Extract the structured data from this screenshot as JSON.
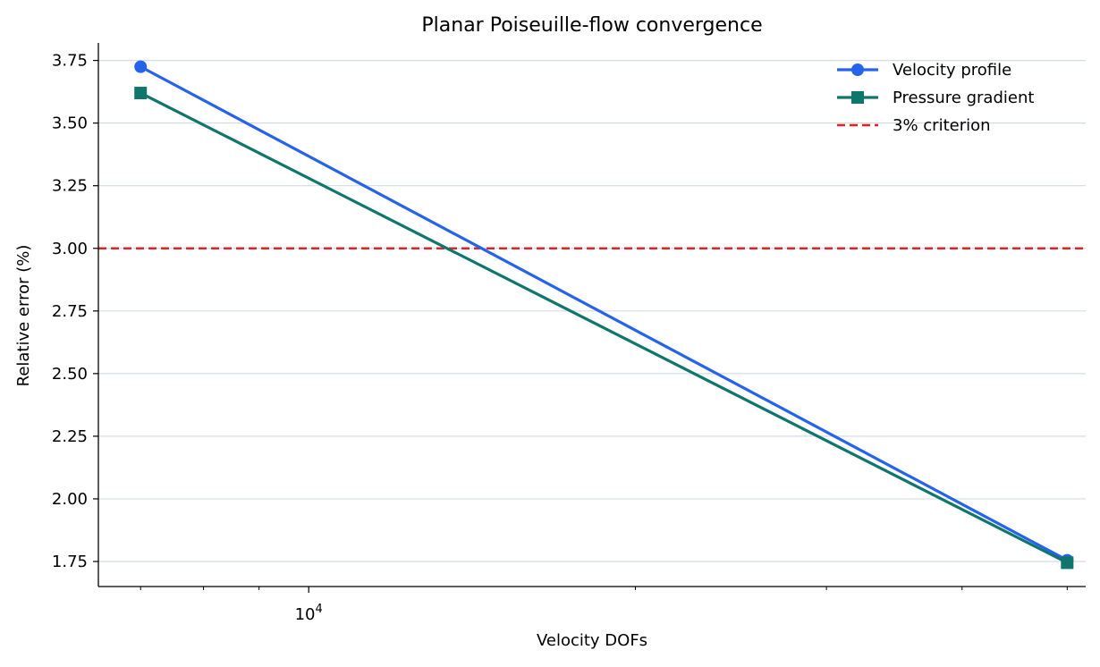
{
  "chart_data": {
    "type": "line",
    "title": "Planar Poiseuille-flow convergence",
    "xlabel": "Velocity DOFs",
    "ylabel": "Relative error (%)",
    "xscale": "log",
    "xlim": [
      6400,
      52000
    ],
    "ylim": [
      1.65,
      3.82
    ],
    "y_ticks": [
      1.75,
      2.0,
      2.25,
      2.5,
      2.75,
      3.0,
      3.25,
      3.5,
      3.75
    ],
    "y_tick_labels": [
      "1.75",
      "2.00",
      "2.25",
      "2.50",
      "2.75",
      "3.00",
      "3.25",
      "3.50",
      "3.75"
    ],
    "x_major_ticks": [
      10000
    ],
    "x_major_tick_label": {
      "base": "10",
      "exponent": "4"
    },
    "x_minor_ticks": [
      7000,
      8000,
      9000,
      20000,
      30000,
      40000,
      50000
    ],
    "grid": "horizontal",
    "legend_position": "top-right",
    "series": [
      {
        "name": "Velocity profile",
        "color": "#2563eb",
        "marker": "circle",
        "x": [
          7000,
          50000
        ],
        "y": [
          3.725,
          1.755
        ]
      },
      {
        "name": "Pressure gradient",
        "color": "#0f766e",
        "marker": "square",
        "x": [
          7000,
          50000
        ],
        "y": [
          3.62,
          1.745
        ]
      }
    ],
    "reference_lines": [
      {
        "name": "3% criterion",
        "y": 3.0,
        "color": "#dc2626",
        "style": "dashed"
      }
    ]
  }
}
